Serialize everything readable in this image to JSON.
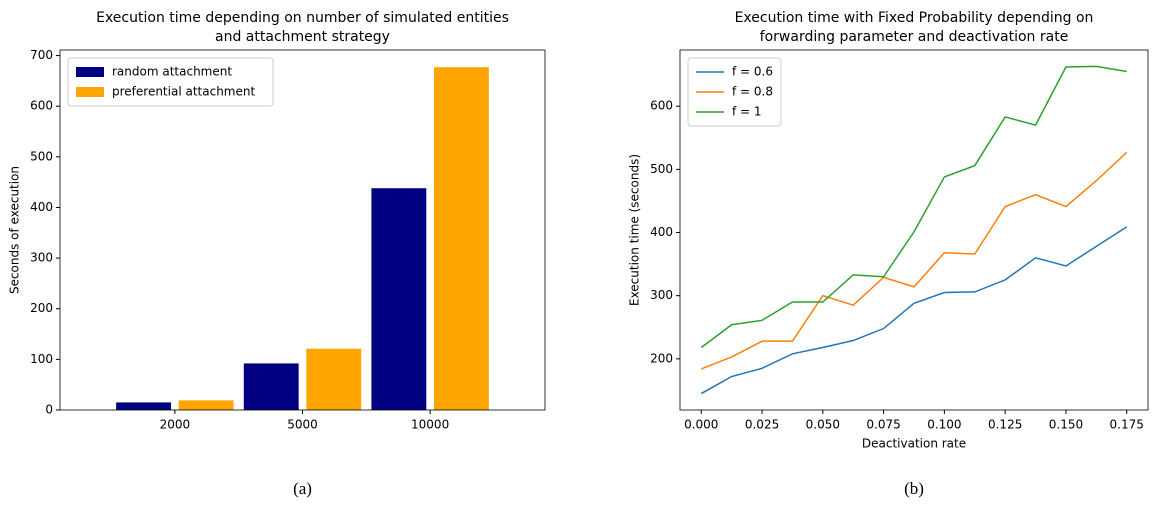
{
  "chart_data": [
    {
      "type": "bar",
      "title": [
        "Execution time depending on number of simulated entities",
        "and attachment strategy"
      ],
      "ylabel": "Seconds of execution",
      "categories": [
        "2000",
        "5000",
        "10000"
      ],
      "series": [
        {
          "name": "random attachment",
          "color": "#000080",
          "values": [
            15,
            92,
            438
          ]
        },
        {
          "name": "preferential attachment",
          "color": "#ffa500",
          "values": [
            19,
            121,
            677
          ]
        }
      ],
      "ylim": [
        0,
        711
      ],
      "yticks": [
        0,
        100,
        200,
        300,
        400,
        500,
        600,
        700
      ],
      "legend": "upper left",
      "caption": "(a)"
    },
    {
      "type": "line",
      "title": [
        "Execution time with Fixed Probability depending on",
        "forwarding parameter and deactivation rate"
      ],
      "xlabel": "Deactivation rate",
      "ylabel": "Execution time (seconds)",
      "x": [
        0,
        0.0125,
        0.025,
        0.0375,
        0.05,
        0.0625,
        0.075,
        0.0875,
        0.1,
        0.1125,
        0.125,
        0.1375,
        0.15,
        0.1625,
        0.175
      ],
      "series": [
        {
          "name": "f = 0.6",
          "color": "#1f77b4",
          "values": [
            145,
            172,
            185,
            208,
            218,
            229,
            248,
            288,
            305,
            306,
            325,
            360,
            347,
            378,
            409
          ]
        },
        {
          "name": "f = 0.8",
          "color": "#ff7f0e",
          "values": [
            184,
            203,
            228,
            228,
            300,
            285,
            329,
            314,
            368,
            366,
            441,
            460,
            441,
            482,
            527
          ]
        },
        {
          "name": "f = 1",
          "color": "#2ca02c",
          "values": [
            218,
            254,
            261,
            290,
            290,
            333,
            330,
            401,
            488,
            506,
            583,
            570,
            662,
            663,
            655
          ]
        }
      ],
      "xlim": [
        -0.00875,
        0.18375
      ],
      "xticks": [
        {
          "value": 0,
          "label": "0.000"
        },
        {
          "value": 0.025,
          "label": "0.025"
        },
        {
          "value": 0.05,
          "label": "0.050"
        },
        {
          "value": 0.075,
          "label": "0.075"
        },
        {
          "value": 0.1,
          "label": "0.100"
        },
        {
          "value": 0.125,
          "label": "0.125"
        },
        {
          "value": 0.15,
          "label": "0.150"
        },
        {
          "value": 0.175,
          "label": "0.175"
        }
      ],
      "ylim": [
        119,
        689
      ],
      "yticks": [
        200,
        300,
        400,
        500,
        600
      ],
      "legend": "upper left",
      "caption": "(b)"
    }
  ]
}
